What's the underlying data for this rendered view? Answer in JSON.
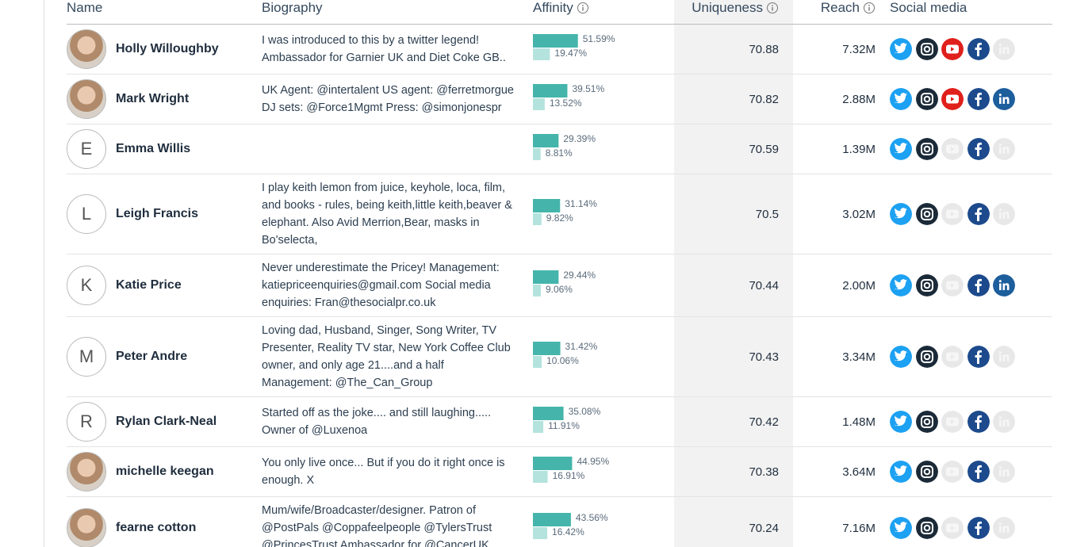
{
  "header": {
    "columns": [
      "Name",
      "Biography",
      "Affinity",
      "Uniqueness",
      "Reach",
      "Social media"
    ]
  },
  "rows": [
    {
      "avatar": "photo",
      "name": "Holly Willoughby",
      "bio": "I was introduced to this by a twitter legend! Ambassador for Garnier UK and Diet Coke GB..",
      "affinity": [
        {
          "value": 51.59,
          "label": "51.59%"
        },
        {
          "value": 19.47,
          "label": "19.47%"
        }
      ],
      "uniqueness": 70.88,
      "reach": "7.32M",
      "social_active": [
        true,
        true,
        true,
        true,
        false
      ]
    },
    {
      "avatar": "photo",
      "name": "Mark Wright",
      "bio": "UK Agent: @intertalent US agent: @ferretmorgue DJ sets: @Force1Mgmt Press: @simonjonespr",
      "affinity": [
        {
          "value": 39.51,
          "label": "39.51%"
        },
        {
          "value": 13.52,
          "label": "13.52%"
        }
      ],
      "uniqueness": 70.82,
      "reach": "2.88M",
      "social_active": [
        true,
        true,
        true,
        true,
        true
      ]
    },
    {
      "initial": "E",
      "name": "Emma Willis",
      "bio": null,
      "affinity": [
        {
          "value": 29.39,
          "label": "29.39%"
        },
        {
          "value": 8.81,
          "label": "8.81%"
        }
      ],
      "uniqueness": 70.59,
      "reach": "1.39M",
      "social_active": [
        true,
        true,
        false,
        true,
        false
      ]
    },
    {
      "initial": "L",
      "name": "Leigh Francis",
      "bio": "I play keith lemon from juice, keyhole, loca, film, and books - rules, being keith,little keith,beaver & elephant. Also Avid Merrion,Bear, masks in Bo'selecta,",
      "affinity": [
        {
          "value": 31.14,
          "label": "31.14%"
        },
        {
          "value": 9.82,
          "label": "9.82%"
        }
      ],
      "uniqueness": 70.5,
      "reach": "3.02M",
      "social_active": [
        true,
        true,
        false,
        true,
        false
      ]
    },
    {
      "initial": "K",
      "name": "Katie Price",
      "bio": "Never underestimate the Pricey! Management: katiepriceenquiries@gmail.com Social media enquiries: Fran@thesocialpr.co.uk",
      "affinity": [
        {
          "value": 29.44,
          "label": "29.44%"
        },
        {
          "value": 9.06,
          "label": "9.06%"
        }
      ],
      "uniqueness": 70.44,
      "reach": "2.00M",
      "social_active": [
        true,
        true,
        false,
        true,
        true
      ]
    },
    {
      "initial": "M",
      "name": "Peter Andre",
      "bio": "Loving dad, Husband, Singer, Song Writer, TV Presenter, Reality TV star, New York Coffee Club owner, and only age 21....and a half Management: @The_Can_Group",
      "affinity": [
        {
          "value": 31.42,
          "label": "31.42%"
        },
        {
          "value": 10.06,
          "label": "10.06%"
        }
      ],
      "uniqueness": 70.43,
      "reach": "3.34M",
      "social_active": [
        true,
        true,
        false,
        true,
        false
      ]
    },
    {
      "initial": "R",
      "name": "Rylan Clark-Neal",
      "bio": "Started off as the joke.... and still laughing..... Owner of @Luxenoa",
      "affinity": [
        {
          "value": 35.08,
          "label": "35.08%"
        },
        {
          "value": 11.91,
          "label": "11.91%"
        }
      ],
      "uniqueness": 70.42,
      "reach": "1.48M",
      "social_active": [
        true,
        true,
        false,
        true,
        false
      ]
    },
    {
      "avatar": "photo",
      "name": "michelle keegan",
      "bio": "You only live once... But if you do it right once is enough. X",
      "affinity": [
        {
          "value": 44.95,
          "label": "44.95%"
        },
        {
          "value": 16.91,
          "label": "16.91%"
        }
      ],
      "uniqueness": 70.38,
      "reach": "3.64M",
      "social_active": [
        true,
        true,
        false,
        true,
        false
      ]
    },
    {
      "avatar": "photo",
      "name": "fearne cotton",
      "bio": "Mum/wife/Broadcaster/designer. Patron of @PostPals @Coppafeelpeople @TylersTrust @PrincesTrust Ambassador for @CancerUK",
      "affinity": [
        {
          "value": 43.56,
          "label": "43.56%"
        },
        {
          "value": 16.42,
          "label": "16.42%"
        }
      ],
      "uniqueness": 70.24,
      "reach": "7.16M",
      "social_active": [
        true,
        true,
        false,
        true,
        false
      ]
    }
  ]
}
